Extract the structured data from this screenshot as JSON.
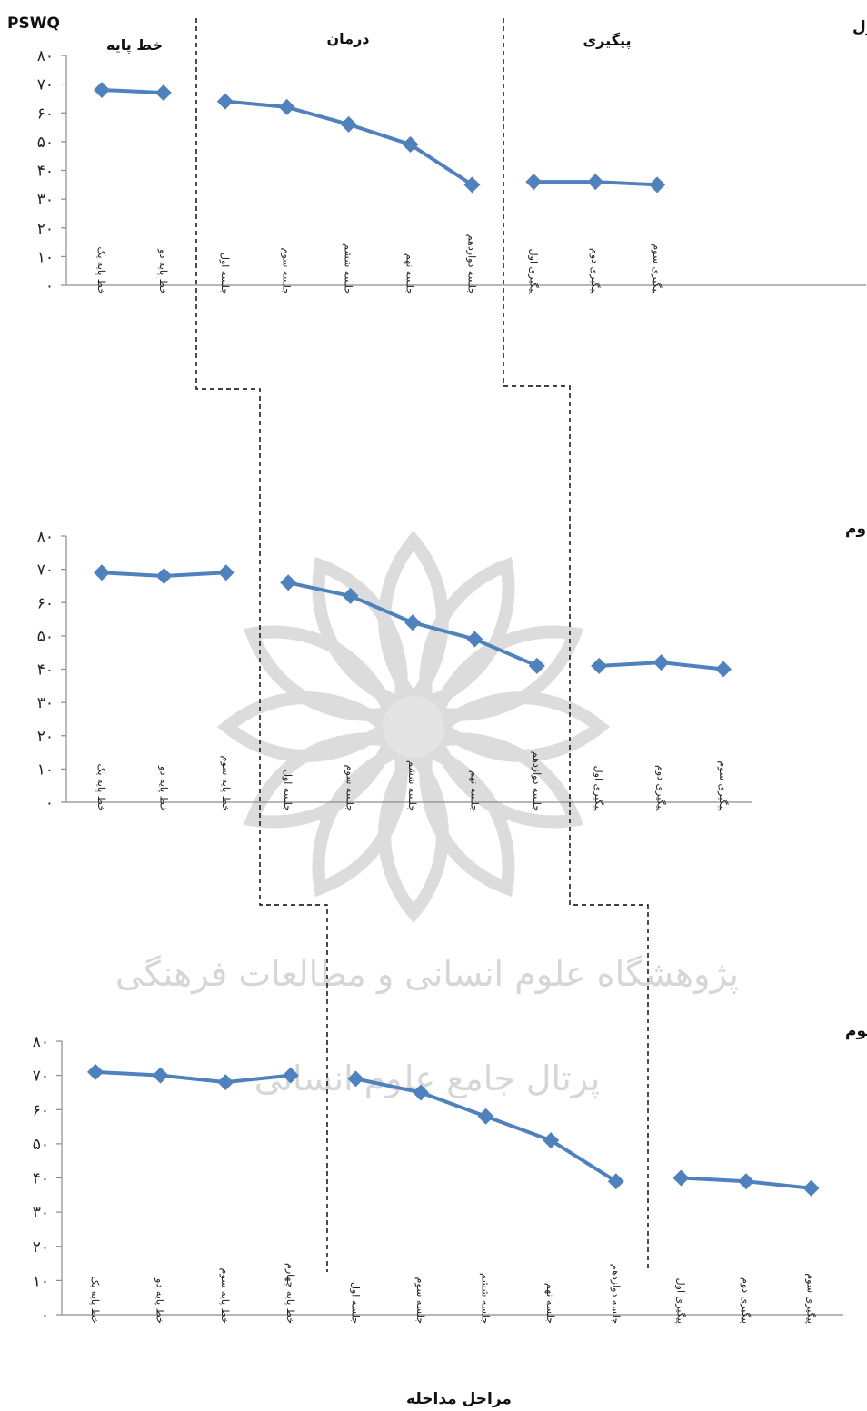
{
  "figure": {
    "y_axis_title": "PSWQ",
    "x_axis_title": "مراحل مداخله",
    "phase_labels": {
      "baseline": "خط پایه",
      "treatment": "درمان",
      "followup": "پیگیری"
    }
  },
  "watermark": {
    "line1": "پژوهشگاه علوم انسانی و مطالعات فرهنگی",
    "line2": "پرتال جامع علوم انسانی"
  },
  "colors": {
    "series": "#4f81bd",
    "axis": "#8c8c8c",
    "phase_line": "#000000"
  },
  "chart_data": [
    {
      "type": "line",
      "title": "بیمار اول",
      "ylim": [
        0,
        80
      ],
      "yticks": [
        "۰",
        "۱۰",
        "۲۰",
        "۳۰",
        "۴۰",
        "۵۰",
        "۶۰",
        "۷۰",
        "۸۰"
      ],
      "categories": [
        "خط پایه یک",
        "خط پایه دو",
        "جلسه اول",
        "جلسه سوم",
        "جلسه ششم",
        "جلسه نهم",
        "جلسه دوازدهم",
        "پیگیری اول",
        "پیگیری دوم",
        "پیگیری سوم"
      ],
      "segments": [
        [
          0,
          1
        ],
        [
          2,
          6
        ],
        [
          7,
          9
        ]
      ],
      "values": [
        68,
        67,
        64,
        62,
        56,
        49,
        35,
        36,
        36,
        35
      ]
    },
    {
      "type": "line",
      "title": "بیمار دوم",
      "ylim": [
        0,
        80
      ],
      "yticks": [
        "۰",
        "۱۰",
        "۲۰",
        "۳۰",
        "۴۰",
        "۵۰",
        "۶۰",
        "۷۰",
        "۸۰"
      ],
      "categories": [
        "خط پایه یک",
        "خط پایه دو",
        "خط پایه سوم",
        "جلسه اول",
        "جلسه سوم",
        "جلسه ششم",
        "جلسه نهم",
        "جلسه دوازدهم",
        "پیگیری اول",
        "پیگیری دوم",
        "پیگیری سوم"
      ],
      "segments": [
        [
          0,
          2
        ],
        [
          3,
          7
        ],
        [
          8,
          10
        ]
      ],
      "values": [
        69,
        68,
        69,
        66,
        62,
        54,
        49,
        41,
        41,
        42,
        40
      ]
    },
    {
      "type": "line",
      "title": "بیمار سوم",
      "ylim": [
        0,
        80
      ],
      "yticks": [
        "۰",
        "۱۰",
        "۲۰",
        "۳۰",
        "۴۰",
        "۵۰",
        "۶۰",
        "۷۰",
        "۸۰"
      ],
      "categories": [
        "خط پایه یک",
        "خط پایه دو",
        "خط پایه سوم",
        "خط پایه چهارم",
        "جلسه اول",
        "جلسه سوم",
        "جلسه ششم",
        "جلسه نهم",
        "جلسه دوازدهم",
        "پیگیری اول",
        "پیگیری دوم",
        "پیگیری سوم"
      ],
      "segments": [
        [
          0,
          3
        ],
        [
          4,
          8
        ],
        [
          9,
          11
        ]
      ],
      "values": [
        71,
        70,
        68,
        70,
        69,
        65,
        58,
        51,
        39,
        40,
        39,
        37
      ]
    }
  ]
}
